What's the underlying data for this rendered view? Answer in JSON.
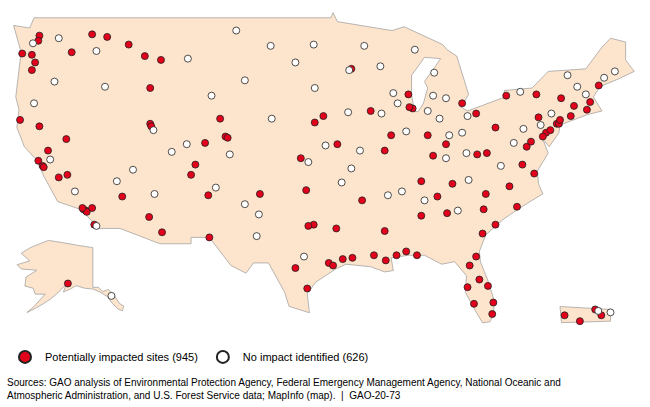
{
  "chart_data": [
    {
      "type": "scatter",
      "xlim": [
        -125.5,
        -66
      ],
      "ylim": [
        24,
        50
      ],
      "tick_labels": false,
      "grid": false,
      "legend": "bottom left",
      "source": [
        "Sources: GAO analysis of Environmental Protection Agency, Federal Emergency Management Agency, National Oceanic and",
        "Atmospheric Administration, and U.S. Forest Service data; MapInfo (map).  |  GAO-20-73"
      ],
      "series": [
        {
          "name": "Potentially impacted sites (945)",
          "color": "#e3001b",
          "marker": "circle",
          "x": [
            -122.4,
            -122.0,
            -121.9,
            -118.2,
            -118.0,
            -117.9,
            -117.2,
            -121.5,
            -120.5,
            -119.7,
            -122.3,
            -124.1,
            -118.3,
            -117.4,
            -122.3,
            -122.4,
            -123.0,
            -122.7,
            -123.9,
            -117.4,
            -119.3,
            -123.0,
            -116.0,
            -112.5,
            -111.0,
            -114.0,
            -112.0,
            -119.8,
            -112.0,
            -111.9,
            -110.9,
            -112.1,
            -106.6,
            -108.2,
            -106.5,
            -114.6,
            -105.0,
            -104.8,
            -106.9,
            -105.5,
            -107.8,
            -95.4,
            -95.0,
            -94.1,
            -97.4,
            -96.8,
            -97.3,
            -98.5,
            -101.8,
            -94.7,
            -91.2,
            -90.1,
            -93.2,
            -88.2,
            -89.1,
            -87.2,
            -82.5,
            -81.7,
            -80.2,
            -80.1,
            -81.4,
            -82.3,
            -81.9,
            -80.6,
            -84.4,
            -86.8,
            -85.3,
            -81.0,
            -80.8,
            -79.9,
            -78.6,
            -77.9,
            -81.1,
            -90.2,
            -86.8,
            -83.9,
            -77.0,
            -76.6,
            -75.2,
            -74.2,
            -74.0,
            -73.9,
            -72.9,
            -71.4,
            -71.1,
            -75.5,
            -76.3,
            -77.4,
            -79.9,
            -80.7,
            -81.6,
            -74.8,
            -75.9,
            -73.8,
            -76.1,
            -78.9,
            -72.6,
            -70.3,
            -87.6,
            -87.9,
            -88.0,
            -83.0,
            -84.5,
            -81.7,
            -86.2,
            -90.2,
            -93.3,
            -94.6,
            -95.9,
            -97.5,
            -92.3,
            -89.6,
            -91.5,
            -85.7,
            -96.7,
            -98.0
          ],
          "y": [
            37.8,
            37.4,
            37.3,
            34.0,
            33.9,
            33.8,
            32.8,
            38.6,
            36.5,
            36.7,
            40.5,
            41.0,
            34.1,
            34.1,
            47.6,
            47.2,
            46.1,
            45.5,
            46.2,
            47.7,
            46.3,
            44.9,
            47.5,
            46.0,
            45.7,
            46.9,
            43.5,
            39.5,
            40.7,
            40.5,
            32.2,
            33.4,
            35.1,
            36.7,
            31.8,
            35.0,
            39.7,
            39.6,
            39.2,
            41.1,
            37.5,
            29.8,
            29.6,
            30.1,
            27.8,
            32.8,
            32.7,
            29.4,
            35.2,
            32.5,
            30.4,
            30.0,
            30.2,
            30.7,
            30.4,
            30.4,
            27.9,
            30.3,
            25.8,
            26.7,
            28.5,
            29.6,
            26.6,
            28.0,
            33.7,
            33.5,
            35.0,
            34.0,
            35.2,
            32.8,
            35.8,
            34.2,
            32.1,
            32.3,
            36.2,
            36.0,
            38.9,
            39.3,
            40.0,
            40.7,
            40.7,
            41.0,
            41.3,
            41.8,
            42.4,
            39.7,
            36.8,
            37.5,
            40.4,
            38.4,
            38.3,
            40.2,
            41.2,
            42.7,
            43.0,
            42.9,
            42.1,
            43.7,
            41.9,
            42.0,
            43.0,
            42.3,
            39.1,
            41.5,
            39.8,
            38.6,
            45.0,
            39.1,
            41.3,
            35.5,
            34.7,
            39.8,
            41.7,
            38.2,
            40.8,
            38.0
          ]
        },
        {
          "name": "No impact identified (626)",
          "color": "#ffffff",
          "marker": "circle",
          "x": [
            -122.9,
            -120.5,
            -117.0,
            -122.8,
            -120.9,
            -116.2,
            -111.7,
            -113.6,
            -110.0,
            -108.6,
            -104.6,
            -106.3,
            -108.5,
            -104.0,
            -100.8,
            -96.8,
            -98.5,
            -103.2,
            -96.7,
            -100.7,
            -97.3,
            -95.7,
            -101.9,
            -102.1,
            -97.7,
            -93.5,
            -92.1,
            -89.4,
            -90.6,
            -87.4,
            -85.6,
            -84.5,
            -85.7,
            -86.2,
            -88.2,
            -89.0,
            -90.5,
            -93.6,
            -92.5,
            -93.3,
            -94.2,
            -83.0,
            -84.2,
            -82.5,
            -85.1,
            -82.6,
            -84.5,
            -86.5,
            -88.6,
            -89.9,
            -83.4,
            -82.4,
            -79.4,
            -78.2,
            -77.3,
            -75.7,
            -74.7,
            -72.3,
            -71.5,
            -69.8,
            -68.8,
            -73.2,
            -77.6,
            -105.9,
            -103.2,
            -111.6,
            -115.1,
            -119.0,
            -121.3,
            -117.0
          ],
          "y": [
            47.0,
            47.4,
            46.4,
            42.3,
            44.0,
            43.6,
            40.2,
            37.1,
            38.5,
            39.1,
            38.3,
            42.9,
            45.8,
            48.0,
            46.8,
            46.9,
            45.5,
            44.1,
            43.5,
            41.1,
            37.7,
            39.0,
            33.6,
            31.9,
            30.3,
            44.9,
            46.8,
            43.1,
            45.2,
            46.5,
            44.7,
            42.7,
            42.9,
            41.7,
            40.1,
            42.3,
            41.5,
            41.6,
            38.6,
            37.2,
            36.1,
            40.0,
            39.8,
            41.3,
            41.1,
            38.4,
            38.0,
            34.7,
            35.4,
            35.1,
            33.9,
            36.3,
            37.4,
            39.2,
            40.3,
            40.6,
            41.5,
            43.6,
            43.0,
            44.3,
            44.8,
            44.5,
            43.2,
            35.7,
            34.4,
            35.2,
            36.2,
            35.4,
            37.9,
            32.7
          ]
        }
      ]
    },
    {
      "type": "scatter",
      "xlim": [
        -170,
        -129
      ],
      "ylim": [
        51,
        72
      ],
      "tick_labels": false,
      "grid": false,
      "series": [
        {
          "name": "Potentially impacted sites (945)",
          "color": "#e3001b",
          "marker": "circle",
          "x": [
            -149.9
          ],
          "y": [
            61.2
          ]
        },
        {
          "name": "No impact identified (626)",
          "color": "#ffffff",
          "marker": "circle",
          "x": [
            -134.4
          ],
          "y": [
            58.3
          ]
        }
      ]
    },
    {
      "type": "scatter",
      "xlim": [
        -67.4,
        -65.1
      ],
      "ylim": [
        17.8,
        18.65
      ],
      "tick_labels": false,
      "grid": false,
      "series": [
        {
          "name": "Potentially impacted sites (945)",
          "color": "#e3001b",
          "marker": "circle",
          "x": [
            -66.1,
            -65.9,
            -66.6,
            -67.1
          ],
          "y": [
            18.4,
            18.2,
            18.0,
            18.2
          ]
        },
        {
          "name": "No impact identified (626)",
          "color": "#ffffff",
          "marker": "circle",
          "x": [
            -66.0,
            -65.6
          ],
          "y": [
            18.35,
            18.3
          ]
        }
      ]
    }
  ]
}
